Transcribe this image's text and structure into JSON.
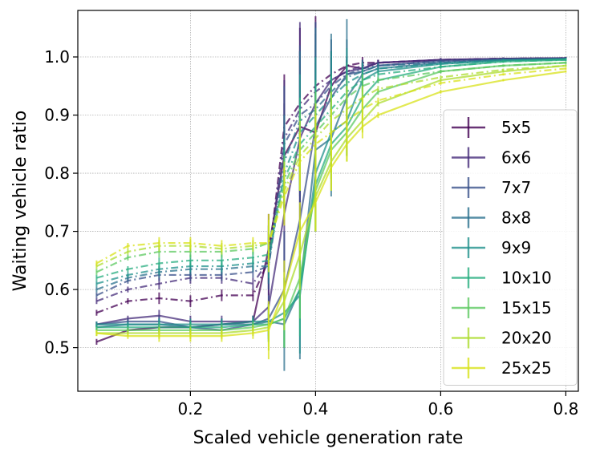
{
  "chart_data": {
    "type": "line",
    "title": "",
    "xlabel": "Scaled vehicle generation rate",
    "ylabel": "Waiting vehicle ratio",
    "xlim": [
      0.02,
      0.82
    ],
    "ylim": [
      0.425,
      1.08
    ],
    "grid": true,
    "legend_position": "lower-right",
    "x_ticks": [
      0.2,
      0.4,
      0.6,
      0.8
    ],
    "x_tick_labels": [
      "0.2",
      "0.4",
      "0.6",
      "0.8"
    ],
    "y_ticks": [
      0.5,
      0.6,
      0.7,
      0.8,
      0.9,
      1.0
    ],
    "y_tick_labels": [
      "0.5",
      "0.6",
      "0.7",
      "0.8",
      "0.9",
      "1.0"
    ],
    "x": [
      0.05,
      0.1,
      0.15,
      0.2,
      0.25,
      0.3,
      0.325,
      0.35,
      0.375,
      0.4,
      0.425,
      0.45,
      0.475,
      0.5,
      0.6,
      0.7,
      0.8
    ],
    "series": [
      {
        "name": "5x5",
        "color": "#440154",
        "solid": [
          0.51,
          0.53,
          0.535,
          0.535,
          0.54,
          0.545,
          0.67,
          0.83,
          0.88,
          0.87,
          0.95,
          0.985,
          0.98,
          0.99,
          0.995,
          0.997,
          0.998
        ],
        "dashed": [
          0.56,
          0.58,
          0.585,
          0.58,
          0.59,
          0.59,
          0.65,
          0.88,
          0.92,
          0.95,
          0.97,
          0.985,
          0.99,
          0.99,
          0.995,
          0.997,
          0.998
        ],
        "errors": [
          0.005,
          0.005,
          0.01,
          0.01,
          0.01,
          0.01,
          0.06,
          0.09,
          0.13,
          0.12,
          0.03,
          0.01,
          0.01,
          0.005,
          0.003,
          0.002,
          0.002
        ]
      },
      {
        "name": "6x6",
        "color": "#472d7b",
        "solid": [
          0.54,
          0.55,
          0.555,
          0.545,
          0.545,
          0.545,
          0.57,
          0.73,
          0.86,
          0.92,
          0.96,
          0.975,
          0.98,
          0.99,
          0.995,
          0.997,
          0.998
        ],
        "dashed": [
          0.58,
          0.6,
          0.61,
          0.62,
          0.62,
          0.61,
          0.65,
          0.86,
          0.91,
          0.94,
          0.96,
          0.975,
          0.985,
          0.99,
          0.995,
          0.997,
          0.998
        ],
        "errors": [
          0.005,
          0.005,
          0.01,
          0.01,
          0.01,
          0.01,
          0.05,
          0.1,
          0.15,
          0.12,
          0.05,
          0.02,
          0.01,
          0.005,
          0.003,
          0.002,
          0.002
        ]
      },
      {
        "name": "7x7",
        "color": "#3b528b",
        "solid": [
          0.54,
          0.545,
          0.545,
          0.535,
          0.53,
          0.54,
          0.55,
          0.6,
          0.72,
          0.88,
          0.93,
          0.97,
          0.975,
          0.985,
          0.993,
          0.996,
          0.997
        ],
        "dashed": [
          0.59,
          0.615,
          0.625,
          0.625,
          0.625,
          0.63,
          0.64,
          0.85,
          0.9,
          0.92,
          0.95,
          0.97,
          0.98,
          0.985,
          0.993,
          0.996,
          0.997
        ],
        "errors": [
          0.005,
          0.005,
          0.01,
          0.01,
          0.01,
          0.01,
          0.04,
          0.1,
          0.12,
          0.14,
          0.08,
          0.03,
          0.01,
          0.005,
          0.003,
          0.002,
          0.002
        ]
      },
      {
        "name": "8x8",
        "color": "#2c728e",
        "solid": [
          0.535,
          0.54,
          0.54,
          0.535,
          0.54,
          0.54,
          0.545,
          0.54,
          0.6,
          0.84,
          0.86,
          0.93,
          0.97,
          0.98,
          0.99,
          0.995,
          0.997
        ],
        "dashed": [
          0.6,
          0.62,
          0.63,
          0.635,
          0.635,
          0.64,
          0.64,
          0.82,
          0.89,
          0.91,
          0.94,
          0.965,
          0.975,
          0.985,
          0.99,
          0.995,
          0.997
        ],
        "errors": [
          0.005,
          0.005,
          0.01,
          0.01,
          0.01,
          0.01,
          0.03,
          0.08,
          0.12,
          0.14,
          0.1,
          0.1,
          0.02,
          0.005,
          0.003,
          0.002,
          0.002
        ]
      },
      {
        "name": "9x9",
        "color": "#21918c",
        "solid": [
          0.54,
          0.54,
          0.54,
          0.54,
          0.54,
          0.545,
          0.545,
          0.56,
          0.59,
          0.8,
          0.87,
          0.89,
          0.96,
          0.975,
          0.988,
          0.994,
          0.996
        ],
        "dashed": [
          0.61,
          0.625,
          0.635,
          0.64,
          0.64,
          0.645,
          0.65,
          0.8,
          0.87,
          0.9,
          0.93,
          0.955,
          0.97,
          0.98,
          0.988,
          0.994,
          0.996
        ],
        "errors": [
          0.005,
          0.005,
          0.01,
          0.01,
          0.01,
          0.01,
          0.03,
          0.06,
          0.1,
          0.1,
          0.08,
          0.06,
          0.02,
          0.005,
          0.003,
          0.002,
          0.002
        ]
      },
      {
        "name": "10x10",
        "color": "#28ae80",
        "solid": [
          0.535,
          0.535,
          0.535,
          0.535,
          0.535,
          0.54,
          0.54,
          0.55,
          0.6,
          0.78,
          0.85,
          0.88,
          0.93,
          0.96,
          0.983,
          0.992,
          0.995
        ],
        "dashed": [
          0.62,
          0.635,
          0.645,
          0.65,
          0.65,
          0.655,
          0.66,
          0.79,
          0.85,
          0.88,
          0.91,
          0.94,
          0.96,
          0.97,
          0.983,
          0.992,
          0.995
        ],
        "errors": [
          0.005,
          0.005,
          0.01,
          0.01,
          0.01,
          0.01,
          0.03,
          0.05,
          0.08,
          0.08,
          0.06,
          0.05,
          0.02,
          0.005,
          0.003,
          0.002,
          0.002
        ]
      },
      {
        "name": "15x15",
        "color": "#5ec962",
        "solid": [
          0.53,
          0.53,
          0.53,
          0.53,
          0.53,
          0.535,
          0.54,
          0.55,
          0.62,
          0.77,
          0.84,
          0.87,
          0.91,
          0.94,
          0.975,
          0.985,
          0.99
        ],
        "dashed": [
          0.63,
          0.655,
          0.665,
          0.665,
          0.665,
          0.67,
          0.68,
          0.78,
          0.84,
          0.87,
          0.9,
          0.93,
          0.95,
          0.96,
          0.975,
          0.985,
          0.99
        ],
        "errors": [
          0.005,
          0.005,
          0.01,
          0.01,
          0.01,
          0.01,
          0.03,
          0.05,
          0.07,
          0.07,
          0.05,
          0.04,
          0.02,
          0.005,
          0.003,
          0.002,
          0.002
        ]
      },
      {
        "name": "20x20",
        "color": "#addc30",
        "solid": [
          0.525,
          0.525,
          0.525,
          0.525,
          0.525,
          0.53,
          0.535,
          0.58,
          0.66,
          0.76,
          0.82,
          0.86,
          0.89,
          0.92,
          0.96,
          0.975,
          0.985
        ],
        "dashed": [
          0.64,
          0.665,
          0.675,
          0.675,
          0.67,
          0.675,
          0.68,
          0.77,
          0.83,
          0.86,
          0.89,
          0.91,
          0.93,
          0.945,
          0.965,
          0.978,
          0.985
        ],
        "errors": [
          0.005,
          0.005,
          0.01,
          0.01,
          0.01,
          0.01,
          0.04,
          0.05,
          0.06,
          0.06,
          0.05,
          0.04,
          0.02,
          0.005,
          0.003,
          0.002,
          0.002
        ]
      },
      {
        "name": "25x25",
        "color": "#d8e219",
        "solid": [
          0.525,
          0.52,
          0.52,
          0.52,
          0.52,
          0.525,
          0.53,
          0.6,
          0.7,
          0.75,
          0.81,
          0.85,
          0.88,
          0.9,
          0.94,
          0.96,
          0.975
        ],
        "dashed": [
          0.645,
          0.675,
          0.68,
          0.68,
          0.675,
          0.68,
          0.68,
          0.76,
          0.82,
          0.85,
          0.87,
          0.89,
          0.91,
          0.925,
          0.955,
          0.97,
          0.98
        ],
        "errors": [
          0.005,
          0.005,
          0.01,
          0.01,
          0.01,
          0.01,
          0.05,
          0.05,
          0.05,
          0.05,
          0.04,
          0.03,
          0.02,
          0.005,
          0.003,
          0.002,
          0.002
        ]
      }
    ]
  }
}
